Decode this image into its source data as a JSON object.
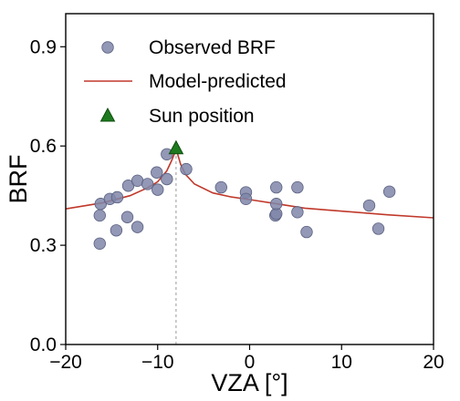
{
  "chart_data": {
    "type": "scatter",
    "xlabel": "VZA [°]",
    "ylabel": "BRF",
    "xlim": [
      -20,
      20
    ],
    "ylim": [
      0.0,
      1.0
    ],
    "x_ticks": [
      -20,
      -10,
      0,
      10,
      20
    ],
    "x_tick_labels": [
      "−20",
      "−10",
      "0",
      "10",
      "20"
    ],
    "y_ticks": [
      0.0,
      0.3,
      0.6,
      0.9
    ],
    "y_tick_labels": [
      "0.0",
      "0.3",
      "0.6",
      "0.9"
    ],
    "grid": false,
    "legend_position": "top-right",
    "sun_line_vza": -8,
    "series": [
      {
        "name": "Observed BRF",
        "kind": "scatter",
        "color": "#7f86a8",
        "points": [
          [
            -16.3,
            0.305
          ],
          [
            -16.3,
            0.39
          ],
          [
            -16.2,
            0.425
          ],
          [
            -15.2,
            0.44
          ],
          [
            -14.5,
            0.345
          ],
          [
            -14.4,
            0.445
          ],
          [
            -13.3,
            0.385
          ],
          [
            -13.2,
            0.48
          ],
          [
            -12.2,
            0.355
          ],
          [
            -12.2,
            0.495
          ],
          [
            -11.1,
            0.485
          ],
          [
            -10.1,
            0.52
          ],
          [
            -10.0,
            0.468
          ],
          [
            -9.0,
            0.5
          ],
          [
            -9.0,
            0.575
          ],
          [
            -6.9,
            0.53
          ],
          [
            -3.1,
            0.475
          ],
          [
            -0.4,
            0.46
          ],
          [
            -0.4,
            0.44
          ],
          [
            2.8,
            0.39
          ],
          [
            2.9,
            0.395
          ],
          [
            2.9,
            0.425
          ],
          [
            2.9,
            0.475
          ],
          [
            5.2,
            0.475
          ],
          [
            5.2,
            0.4
          ],
          [
            6.2,
            0.34
          ],
          [
            13.0,
            0.42
          ],
          [
            14.0,
            0.35
          ],
          [
            15.2,
            0.462
          ]
        ]
      },
      {
        "name": "Model-predicted",
        "kind": "line",
        "color": "#c0392b",
        "points": [
          [
            -20,
            0.41
          ],
          [
            -16,
            0.428
          ],
          [
            -13,
            0.45
          ],
          [
            -11,
            0.475
          ],
          [
            -10,
            0.492
          ],
          [
            -9,
            0.525
          ],
          [
            -8.5,
            0.555
          ],
          [
            -8.1,
            0.582
          ],
          [
            -7.9,
            0.582
          ],
          [
            -7.5,
            0.545
          ],
          [
            -7,
            0.515
          ],
          [
            -6,
            0.485
          ],
          [
            -4,
            0.458
          ],
          [
            -2,
            0.446
          ],
          [
            0,
            0.438
          ],
          [
            3,
            0.425
          ],
          [
            6,
            0.412
          ],
          [
            10,
            0.403
          ],
          [
            15,
            0.392
          ],
          [
            20,
            0.383
          ]
        ]
      },
      {
        "name": "Sun position",
        "kind": "marker",
        "color": "#1e7a1e",
        "points": [
          [
            -8,
            0.593
          ]
        ]
      }
    ]
  }
}
